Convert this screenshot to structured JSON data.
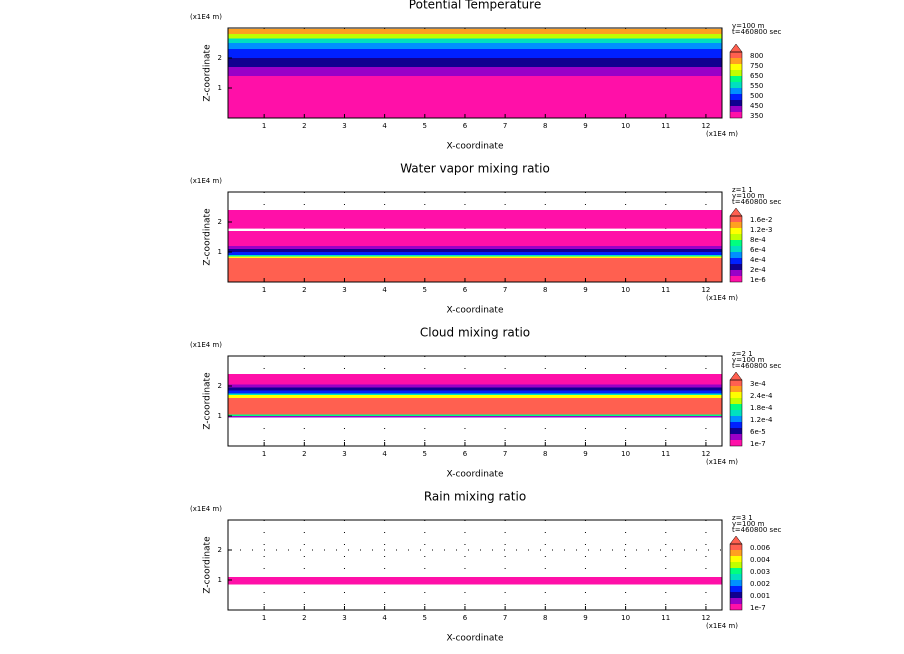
{
  "chart_data": [
    {
      "type": "contour",
      "title": "Potential Temperature",
      "xlabel": "X-coordinate",
      "ylabel": "Z-coordinate",
      "xunit": "(x1E4 m)",
      "yunit": "(x1E4 m)",
      "annotations": [
        "y=100 m",
        "t=460800 sec"
      ],
      "xlim": [
        0.1,
        12.4
      ],
      "ylim": [
        0,
        3
      ],
      "xticks": [
        1,
        2,
        3,
        4,
        5,
        6,
        7,
        8,
        9,
        10,
        11,
        12
      ],
      "yticks": [
        1,
        2
      ],
      "grid": true,
      "bands": [
        {
          "z": [
            0,
            1.4
          ],
          "color": "#ff10a8"
        },
        {
          "z": [
            1.4,
            1.7
          ],
          "color": "#9a00c8"
        },
        {
          "z": [
            1.7,
            2.0
          ],
          "color": "#100090"
        },
        {
          "z": [
            2.0,
            2.3
          ],
          "color": "#0020ff"
        },
        {
          "z": [
            2.3,
            2.5
          ],
          "color": "#0090ff"
        },
        {
          "z": [
            2.5,
            2.65
          ],
          "color": "#00e0c0"
        },
        {
          "z": [
            2.65,
            2.8
          ],
          "color": "#c0ff00"
        },
        {
          "z": [
            2.8,
            2.97
          ],
          "color": "#ffa020"
        }
      ],
      "colorbar": {
        "colors": [
          "#ff10a8",
          "#9a00c8",
          "#100090",
          "#0020ff",
          "#0090ff",
          "#00e0c0",
          "#00ff80",
          "#c0ff00",
          "#ffff00",
          "#ffa020",
          "#ff6050"
        ],
        "labels": [
          "350",
          "450",
          "500",
          "550",
          "650",
          "750",
          "800"
        ]
      }
    },
    {
      "type": "contour",
      "title": "Water vapor mixing ratio",
      "xlabel": "X-coordinate",
      "ylabel": "Z-coordinate",
      "xunit": "(x1E4 m)",
      "yunit": "(x1E4 m)",
      "annotations": [
        "z=1 1",
        "y=100 m",
        "t=460800 sec"
      ],
      "xlim": [
        0.1,
        12.4
      ],
      "ylim": [
        0,
        3
      ],
      "xticks": [
        1,
        2,
        3,
        4,
        5,
        6,
        7,
        8,
        9,
        10,
        11,
        12
      ],
      "yticks": [
        1,
        2
      ],
      "grid": true,
      "bands": [
        {
          "z": [
            0,
            0.8
          ],
          "color": "#ff6050"
        },
        {
          "z": [
            0.8,
            0.85
          ],
          "color": "#ffff00"
        },
        {
          "z": [
            0.85,
            0.9
          ],
          "color": "#00e0c0"
        },
        {
          "z": [
            0.9,
            1.0
          ],
          "color": "#0020ff"
        },
        {
          "z": [
            1.0,
            1.1
          ],
          "color": "#100090"
        },
        {
          "z": [
            1.1,
            1.2
          ],
          "color": "#9a00c8"
        },
        {
          "z": [
            1.2,
            1.7
          ],
          "color": "#ff10a8"
        },
        {
          "z": [
            1.78,
            2.4
          ],
          "color": "#ff10a8"
        }
      ],
      "colorbar": {
        "colors": [
          "#ff10a8",
          "#9a00c8",
          "#100090",
          "#0020ff",
          "#0090ff",
          "#00e0c0",
          "#00ff80",
          "#c0ff00",
          "#ffff00",
          "#ffa020",
          "#ff6050"
        ],
        "labels": [
          "1e-6",
          "2e-4",
          "4e-4",
          "6e-4",
          "8e-4",
          "1.2e-3",
          "1.6e-2"
        ]
      }
    },
    {
      "type": "contour",
      "title": "Cloud mixing ratio",
      "xlabel": "X-coordinate",
      "ylabel": "Z-coordinate",
      "xunit": "(x1E4 m)",
      "yunit": "(x1E4 m)",
      "annotations": [
        "z=2 1",
        "y=100 m",
        "t=460800 sec"
      ],
      "xlim": [
        0.1,
        12.4
      ],
      "ylim": [
        0,
        3
      ],
      "xticks": [
        1,
        2,
        3,
        4,
        5,
        6,
        7,
        8,
        9,
        10,
        11,
        12
      ],
      "yticks": [
        1,
        2
      ],
      "grid": true,
      "bands": [
        {
          "z": [
            0.95,
            1.0
          ],
          "color": "#9a00c8"
        },
        {
          "z": [
            1.0,
            1.05
          ],
          "color": "#00ff80"
        },
        {
          "z": [
            1.05,
            1.6
          ],
          "color": "#ff6050"
        },
        {
          "z": [
            1.6,
            1.7
          ],
          "color": "#ffff00"
        },
        {
          "z": [
            1.7,
            1.75
          ],
          "color": "#00e0c0"
        },
        {
          "z": [
            1.75,
            1.85
          ],
          "color": "#0020ff"
        },
        {
          "z": [
            1.85,
            1.95
          ],
          "color": "#100090"
        },
        {
          "z": [
            1.95,
            2.05
          ],
          "color": "#9a00c8"
        },
        {
          "z": [
            2.05,
            2.4
          ],
          "color": "#ff10a8"
        }
      ],
      "colorbar": {
        "colors": [
          "#ff10a8",
          "#9a00c8",
          "#100090",
          "#0020ff",
          "#0090ff",
          "#00e0c0",
          "#00ff80",
          "#c0ff00",
          "#ffff00",
          "#ffa020",
          "#ff6050"
        ],
        "labels": [
          "1e-7",
          "6e-5",
          "1.2e-4",
          "1.8e-4",
          "2.4e-4",
          "3e-4"
        ]
      }
    },
    {
      "type": "contour",
      "title": "Rain mixing ratio",
      "xlabel": "X-coordinate",
      "ylabel": "Z-coordinate",
      "xunit": "(x1E4 m)",
      "yunit": "(x1E4 m)",
      "annotations": [
        "z=3 1",
        "y=100 m",
        "t=460800 sec"
      ],
      "xlim": [
        0.1,
        12.4
      ],
      "ylim": [
        0,
        3
      ],
      "xticks": [
        1,
        2,
        3,
        4,
        5,
        6,
        7,
        8,
        9,
        10,
        11,
        12
      ],
      "yticks": [
        1,
        2
      ],
      "grid": true,
      "bands": [
        {
          "z": [
            0.85,
            1.1
          ],
          "color": "#ff10a8"
        }
      ],
      "colorbar": {
        "colors": [
          "#ff10a8",
          "#9a00c8",
          "#100090",
          "#0020ff",
          "#0090ff",
          "#00e0c0",
          "#00ff80",
          "#c0ff00",
          "#ffff00",
          "#ffa020",
          "#ff6050"
        ],
        "labels": [
          "1e-7",
          "0.001",
          "0.002",
          "0.003",
          "0.004",
          "0.006"
        ]
      }
    }
  ]
}
